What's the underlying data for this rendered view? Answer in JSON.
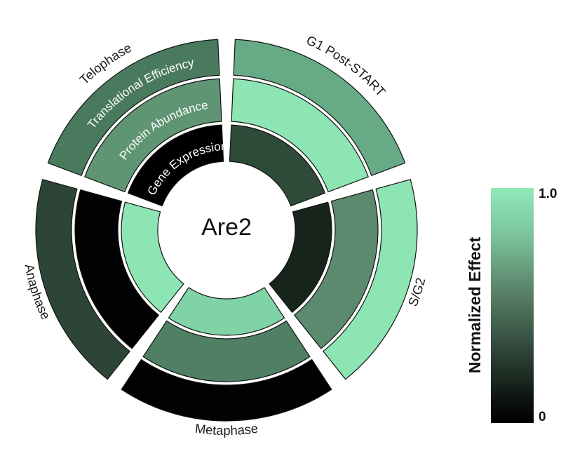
{
  "figure": {
    "center_label": "Are2"
  },
  "chart_data": {
    "type": "heatmap",
    "subtype": "circular-annular-heatmap",
    "center_label": "Are2",
    "rings": [
      "Gene Expression",
      "Protein Abundance",
      "Translational Efficiency"
    ],
    "ring_label_color": "#ffffff",
    "sector_label_color": "#1a1a1a",
    "value_range": [
      0,
      1
    ],
    "sectors": [
      {
        "label": "G1 Post-START",
        "center_angle_deg": 54,
        "cells": [
          {
            "ring": "Gene Expression",
            "value": 0.3,
            "color": "#2e4a39"
          },
          {
            "ring": "Protein Abundance",
            "value": 0.97,
            "color": "#8ee5b4"
          },
          {
            "ring": "Translational Efficiency",
            "value": 0.72,
            "color": "#66ab85"
          }
        ]
      },
      {
        "label": "S/G2",
        "center_angle_deg": -18,
        "cells": [
          {
            "ring": "Gene Expression",
            "value": 0.12,
            "color": "#16241c"
          },
          {
            "ring": "Protein Abundance",
            "value": 0.6,
            "color": "#5c8a6e"
          },
          {
            "ring": "Translational Efficiency",
            "value": 0.97,
            "color": "#8ee5b4"
          }
        ]
      },
      {
        "label": "Metaphase",
        "center_angle_deg": -90,
        "cells": [
          {
            "ring": "Gene Expression",
            "value": 0.88,
            "color": "#7fd3a4"
          },
          {
            "ring": "Protein Abundance",
            "value": 0.55,
            "color": "#4f8063"
          },
          {
            "ring": "Translational Efficiency",
            "value": 0.0,
            "color": "#020202"
          }
        ]
      },
      {
        "label": "Anaphase",
        "center_angle_deg": -162,
        "cells": [
          {
            "ring": "Gene Expression",
            "value": 0.97,
            "color": "#8ee5b4"
          },
          {
            "ring": "Protein Abundance",
            "value": 0.01,
            "color": "#020202"
          },
          {
            "ring": "Translational Efficiency",
            "value": 0.29,
            "color": "#2d4536"
          }
        ]
      },
      {
        "label": "Telophase",
        "center_angle_deg": 126,
        "cells": [
          {
            "ring": "Gene Expression",
            "value": 0.0,
            "color": "#000000"
          },
          {
            "ring": "Protein Abundance",
            "value": 0.64,
            "color": "#5f9573"
          },
          {
            "ring": "Translational Efficiency",
            "value": 0.51,
            "color": "#4a7a5e"
          }
        ]
      }
    ],
    "colorbar": {
      "label": "Normalized Effect",
      "tick_top": "1.0",
      "tick_bottom": "0",
      "gradient_top_to_bottom": [
        "#90e9b8",
        "#7cc49c",
        "#587f67",
        "#2e4337",
        "#0d130f",
        "#000000"
      ]
    }
  }
}
